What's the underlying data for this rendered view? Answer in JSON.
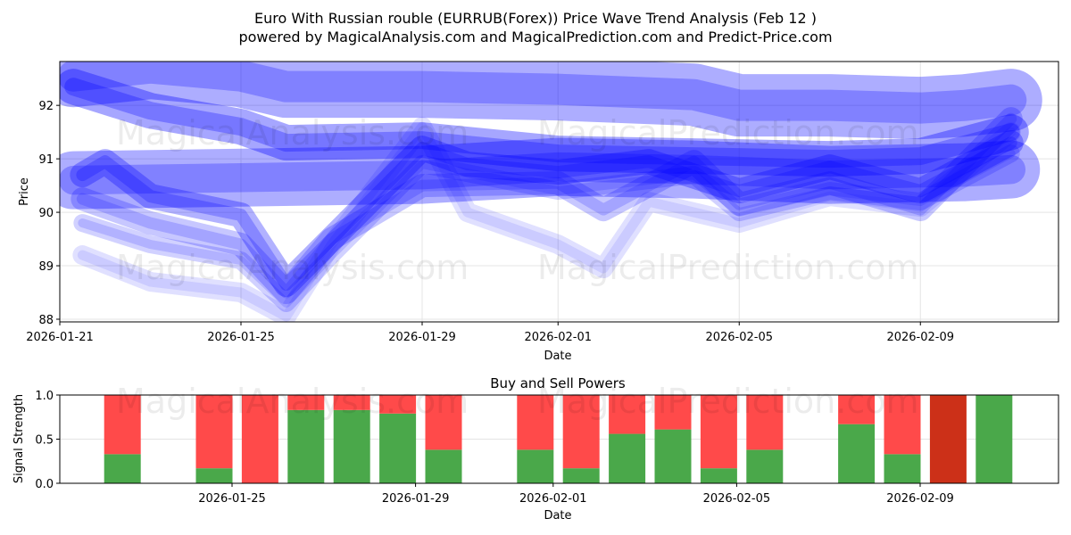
{
  "title_line1": "Euro With Russian rouble (EURRUB(Forex)) Price Wave Trend Analysis (Feb 12 )",
  "title_line2": "powered by MagicalAnalysis.com and MagicalPrediction.com and Predict-Price.com",
  "watermarks": [
    "MagicalAnalysis.com",
    "MagicalPrediction.com"
  ],
  "colors": {
    "wave": "#0000ff",
    "buy": "#4aa84a",
    "sell": "#ff4a4a",
    "sell_dark": "#cc3018"
  },
  "chart_data": [
    {
      "type": "line",
      "title": "",
      "xlabel": "Date",
      "ylabel": "Price",
      "x_start_date": "2026-01-21",
      "xlim_days": [
        0,
        22
      ],
      "ylim": [
        87.95,
        92.82
      ],
      "yticks": [
        88,
        89,
        90,
        91,
        92
      ],
      "xticks": [
        {
          "day": 0,
          "label": "2026-01-21"
        },
        {
          "day": 4,
          "label": "2026-01-25"
        },
        {
          "day": 8,
          "label": "2026-01-29"
        },
        {
          "day": 11,
          "label": "2026-02-01"
        },
        {
          "day": 15,
          "label": "2026-02-05"
        },
        {
          "day": 19,
          "label": "2026-02-09"
        }
      ],
      "grid": true,
      "series": [
        {
          "name": "wave-1",
          "x": [
            0.3,
            2,
            4,
            5,
            8,
            11,
            14,
            15,
            17,
            19,
            20,
            21
          ],
          "y": [
            92.55,
            92.7,
            92.55,
            92.35,
            92.35,
            92.3,
            92.2,
            92.0,
            92.0,
            91.95,
            92.0,
            92.1
          ]
        },
        {
          "name": "wave-2",
          "x": [
            0.3,
            2,
            4,
            5,
            8,
            11,
            14,
            17,
            19,
            21
          ],
          "y": [
            92.35,
            91.9,
            91.6,
            91.3,
            91.35,
            91.1,
            91.05,
            91.0,
            91.05,
            91.5
          ]
        },
        {
          "name": "wave-3",
          "x": [
            0.3,
            8,
            11,
            14,
            17,
            20,
            21
          ],
          "y": [
            90.6,
            90.7,
            90.85,
            90.8,
            90.7,
            90.75,
            90.8
          ]
        },
        {
          "name": "wave-4",
          "x": [
            0.5,
            1,
            2,
            4,
            5,
            6,
            8,
            9,
            11,
            13,
            15,
            17,
            19,
            21
          ],
          "y": [
            90.7,
            90.95,
            90.3,
            89.95,
            88.65,
            89.5,
            91.2,
            90.9,
            90.75,
            90.95,
            90.4,
            90.85,
            90.4,
            91.3
          ]
        },
        {
          "name": "wave-5",
          "x": [
            0.5,
            2,
            4,
            5,
            6,
            8,
            9,
            11,
            12,
            13,
            15,
            17,
            19,
            21
          ],
          "y": [
            89.2,
            88.7,
            88.5,
            88.05,
            89.4,
            91.6,
            90.0,
            89.4,
            88.95,
            90.2,
            89.8,
            90.3,
            90.1,
            91.5
          ]
        },
        {
          "name": "wave-6",
          "x": [
            0.5,
            2,
            4,
            5,
            6,
            8,
            11,
            12,
            14,
            15,
            17,
            19,
            21
          ],
          "y": [
            90.25,
            89.8,
            89.4,
            88.5,
            89.5,
            90.5,
            90.55,
            90.05,
            90.95,
            90.15,
            90.55,
            90.05,
            91.75
          ]
        },
        {
          "name": "wave-7",
          "x": [
            0.5,
            2,
            4,
            5,
            6,
            8,
            11,
            14,
            15,
            17,
            19,
            21
          ],
          "y": [
            89.8,
            89.4,
            89.1,
            88.3,
            89.2,
            90.9,
            90.4,
            90.7,
            90.0,
            90.4,
            90.2,
            91.1
          ]
        }
      ]
    },
    {
      "type": "bar",
      "title": "Buy and Sell Powers",
      "xlabel": "Date",
      "ylabel": "Signal Strength",
      "ylim": [
        0,
        1
      ],
      "yticks": [
        "0.0",
        "0.5",
        "1.0"
      ],
      "xticks": [
        "2026-01-25",
        "2026-01-29",
        "2026-02-01",
        "2026-02-05",
        "2026-02-09"
      ],
      "categories": [
        "2026-01-23",
        "2026-01-25",
        "2026-01-26",
        "2026-01-27",
        "2026-01-28",
        "2026-01-29",
        "2026-01-30",
        "2026-02-01",
        "2026-02-02",
        "2026-02-03",
        "2026-02-04",
        "2026-02-05",
        "2026-02-06",
        "2026-02-08",
        "2026-02-09",
        "2026-02-10",
        "2026-02-11"
      ],
      "series": [
        {
          "name": "Buy",
          "values": [
            0.33,
            0.17,
            0.0,
            0.83,
            0.83,
            0.79,
            0.38,
            0.38,
            0.17,
            0.56,
            0.61,
            0.17,
            0.38,
            0.67,
            0.33,
            0.0,
            1.0
          ]
        },
        {
          "name": "Sell",
          "values": [
            0.67,
            0.83,
            1.0,
            0.17,
            0.17,
            0.21,
            0.62,
            0.62,
            0.83,
            0.44,
            0.39,
            0.83,
            0.62,
            0.33,
            0.67,
            1.0,
            0.0
          ]
        }
      ],
      "highlight_sell_index": 15
    }
  ]
}
